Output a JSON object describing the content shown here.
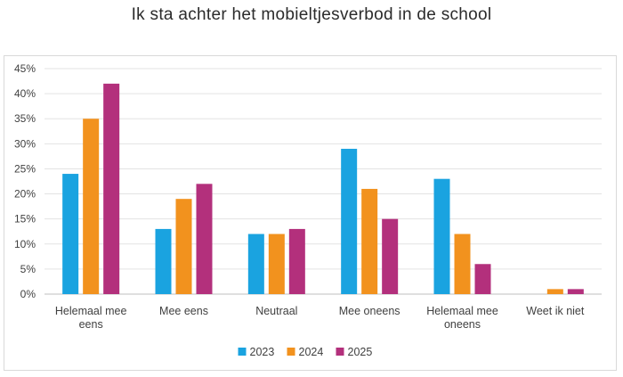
{
  "chart_data": {
    "type": "bar",
    "title": "Ik sta achter het mobieltjesverbod in de school",
    "xlabel": "",
    "ylabel": "",
    "categories": [
      [
        "Helemaal mee",
        "eens"
      ],
      [
        "Mee eens"
      ],
      [
        "Neutraal"
      ],
      [
        "Mee oneens"
      ],
      [
        "Helemaal mee",
        "oneens"
      ],
      [
        "Weet ik niet"
      ]
    ],
    "series": [
      {
        "name": "2023",
        "color": "#1aa3e0",
        "values": [
          24,
          13,
          12,
          29,
          23,
          0
        ]
      },
      {
        "name": "2024",
        "color": "#f2921e",
        "values": [
          35,
          19,
          12,
          21,
          12,
          1
        ]
      },
      {
        "name": "2025",
        "color": "#b3307c",
        "values": [
          42,
          22,
          13,
          15,
          6,
          1
        ]
      }
    ],
    "ylim": [
      0,
      45
    ],
    "yticks": [
      0,
      5,
      10,
      15,
      20,
      25,
      30,
      35,
      40,
      45
    ],
    "ytick_labels": [
      "0%",
      "5%",
      "10%",
      "15%",
      "20%",
      "25%",
      "30%",
      "35%",
      "40%",
      "45%"
    ],
    "grid": true,
    "legend": "bottom-center"
  }
}
